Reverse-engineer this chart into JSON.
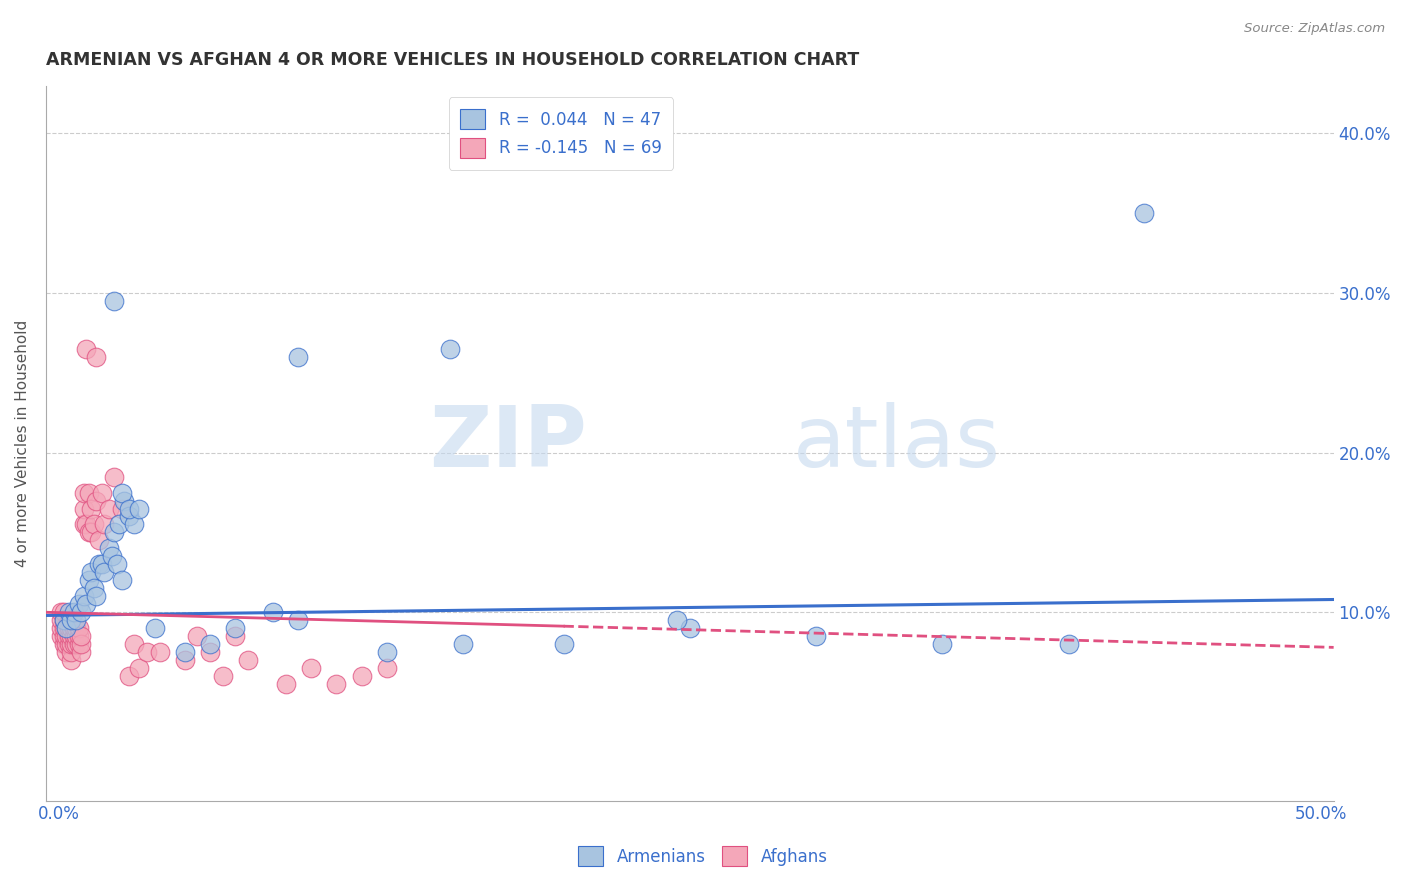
{
  "title": "ARMENIAN VS AFGHAN 4 OR MORE VEHICLES IN HOUSEHOLD CORRELATION CHART",
  "source": "Source: ZipAtlas.com",
  "ylabel": "4 or more Vehicles in Household",
  "armenian_color": "#a8c4e0",
  "afghan_color": "#f4a7b9",
  "armenian_line_color": "#3a6fcc",
  "afghan_line_color": "#e05080",
  "legend_armenian_label": "R =  0.044   N = 47",
  "legend_afghan_label": "R = -0.145   N = 69",
  "armenians_footer": "Armenians",
  "afghans_footer": "Afghans",
  "watermark_zip": "ZIP",
  "watermark_atlas": "atlas",
  "xlim": [
    -0.005,
    0.505
  ],
  "ylim": [
    -0.018,
    0.43
  ],
  "armenian_x": [
    0.002,
    0.003,
    0.004,
    0.005,
    0.006,
    0.007,
    0.008,
    0.009,
    0.01,
    0.011,
    0.012,
    0.013,
    0.014,
    0.015,
    0.016,
    0.017,
    0.018,
    0.02,
    0.021,
    0.022,
    0.023,
    0.024,
    0.025,
    0.026,
    0.028,
    0.03,
    0.022,
    0.025,
    0.028,
    0.032,
    0.038,
    0.05,
    0.06,
    0.07,
    0.085,
    0.095,
    0.13,
    0.16,
    0.2,
    0.25,
    0.3,
    0.35,
    0.4,
    0.43,
    0.155,
    0.245,
    0.095
  ],
  "armenian_y": [
    0.095,
    0.09,
    0.1,
    0.095,
    0.1,
    0.095,
    0.105,
    0.1,
    0.11,
    0.105,
    0.12,
    0.125,
    0.115,
    0.11,
    0.13,
    0.13,
    0.125,
    0.14,
    0.135,
    0.15,
    0.13,
    0.155,
    0.12,
    0.17,
    0.16,
    0.155,
    0.295,
    0.175,
    0.165,
    0.165,
    0.09,
    0.075,
    0.08,
    0.09,
    0.1,
    0.095,
    0.075,
    0.08,
    0.08,
    0.09,
    0.085,
    0.08,
    0.08,
    0.35,
    0.265,
    0.095,
    0.26
  ],
  "afghan_x": [
    0.001,
    0.001,
    0.001,
    0.001,
    0.002,
    0.002,
    0.002,
    0.002,
    0.002,
    0.003,
    0.003,
    0.003,
    0.003,
    0.004,
    0.004,
    0.004,
    0.004,
    0.005,
    0.005,
    0.005,
    0.005,
    0.005,
    0.005,
    0.006,
    0.006,
    0.006,
    0.007,
    0.007,
    0.007,
    0.008,
    0.008,
    0.008,
    0.009,
    0.009,
    0.009,
    0.01,
    0.01,
    0.01,
    0.011,
    0.011,
    0.012,
    0.012,
    0.013,
    0.013,
    0.014,
    0.015,
    0.015,
    0.016,
    0.017,
    0.018,
    0.02,
    0.022,
    0.025,
    0.028,
    0.03,
    0.032,
    0.035,
    0.04,
    0.05,
    0.055,
    0.06,
    0.065,
    0.07,
    0.075,
    0.09,
    0.1,
    0.11,
    0.12,
    0.13
  ],
  "afghan_y": [
    0.085,
    0.09,
    0.095,
    0.1,
    0.08,
    0.085,
    0.09,
    0.095,
    0.1,
    0.075,
    0.08,
    0.085,
    0.09,
    0.08,
    0.085,
    0.09,
    0.095,
    0.07,
    0.075,
    0.08,
    0.085,
    0.09,
    0.095,
    0.08,
    0.085,
    0.09,
    0.08,
    0.085,
    0.09,
    0.08,
    0.085,
    0.09,
    0.075,
    0.08,
    0.085,
    0.155,
    0.165,
    0.175,
    0.155,
    0.265,
    0.15,
    0.175,
    0.15,
    0.165,
    0.155,
    0.17,
    0.26,
    0.145,
    0.175,
    0.155,
    0.165,
    0.185,
    0.165,
    0.06,
    0.08,
    0.065,
    0.075,
    0.075,
    0.07,
    0.085,
    0.075,
    0.06,
    0.085,
    0.07,
    0.055,
    0.065,
    0.055,
    0.06,
    0.065
  ],
  "afghan_line_y_start": 0.1,
  "afghan_line_y_end": 0.078,
  "armenian_line_y_start": 0.098,
  "armenian_line_y_end": 0.108
}
